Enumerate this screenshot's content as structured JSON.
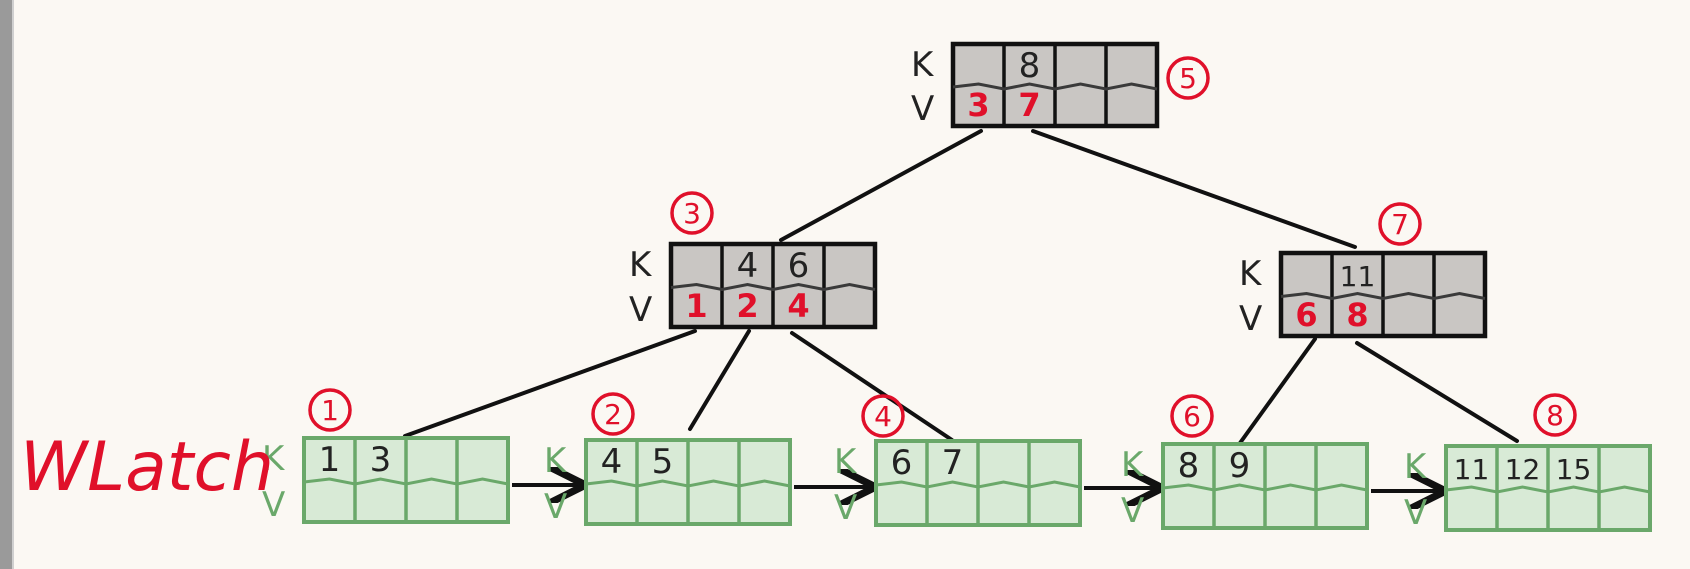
{
  "diagram_title": "WLatch",
  "labels": {
    "key": "K",
    "value": "V"
  },
  "colors": {
    "background": "#fbf8f3",
    "internal_fill": "#c9c6c3",
    "internal_border": "#111111",
    "leaf_fill": "#d8ead6",
    "leaf_border": "#6aa86a",
    "leaf_kv_label": "#6aa86a",
    "page_id": "#e0102a",
    "key_text": "#222222",
    "value_text": "#e0102a",
    "edge": "#111111"
  },
  "nodes": [
    {
      "id": "root",
      "type": "internal",
      "page_id": "5",
      "keys": [
        "",
        "8",
        "",
        ""
      ],
      "values": [
        "3",
        "7",
        "",
        ""
      ]
    },
    {
      "id": "inner-left",
      "type": "internal",
      "page_id": "3",
      "keys": [
        "",
        "4",
        "6",
        ""
      ],
      "values": [
        "1",
        "2",
        "4",
        ""
      ]
    },
    {
      "id": "inner-right",
      "type": "internal",
      "page_id": "7",
      "keys": [
        "",
        "11",
        "",
        ""
      ],
      "values": [
        "6",
        "8",
        "",
        ""
      ]
    },
    {
      "id": "leaf-1",
      "type": "leaf",
      "page_id": "1",
      "keys": [
        "1",
        "3",
        "",
        ""
      ],
      "values": [
        "",
        "",
        "",
        ""
      ]
    },
    {
      "id": "leaf-2",
      "type": "leaf",
      "page_id": "2",
      "keys": [
        "4",
        "5",
        "",
        ""
      ],
      "values": [
        "",
        "",
        "",
        ""
      ]
    },
    {
      "id": "leaf-4",
      "type": "leaf",
      "page_id": "4",
      "keys": [
        "6",
        "7",
        "",
        ""
      ],
      "values": [
        "",
        "",
        "",
        ""
      ]
    },
    {
      "id": "leaf-6",
      "type": "leaf",
      "page_id": "6",
      "keys": [
        "8",
        "9",
        "",
        ""
      ],
      "values": [
        "",
        "",
        "",
        ""
      ]
    },
    {
      "id": "leaf-8",
      "type": "leaf",
      "page_id": "8",
      "keys": [
        "11",
        "12",
        "15",
        ""
      ],
      "values": [
        "",
        "",
        "",
        ""
      ]
    }
  ],
  "edges": [
    {
      "from": "root",
      "to": "inner-left"
    },
    {
      "from": "root",
      "to": "inner-right"
    },
    {
      "from": "inner-left",
      "to": "leaf-1"
    },
    {
      "from": "inner-left",
      "to": "leaf-2"
    },
    {
      "from": "inner-left",
      "to": "leaf-4"
    },
    {
      "from": "inner-right",
      "to": "leaf-6"
    },
    {
      "from": "inner-right",
      "to": "leaf-8"
    }
  ],
  "sibling_links": [
    {
      "from": "leaf-1",
      "to": "leaf-2"
    },
    {
      "from": "leaf-2",
      "to": "leaf-4"
    },
    {
      "from": "leaf-4",
      "to": "leaf-6"
    },
    {
      "from": "leaf-6",
      "to": "leaf-8"
    }
  ]
}
